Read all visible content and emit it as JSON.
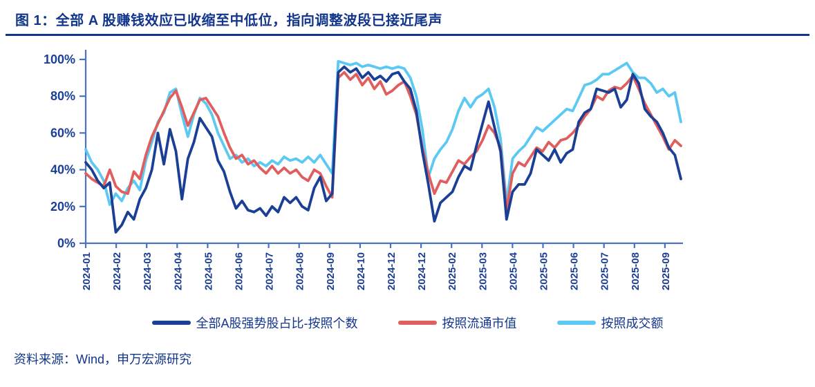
{
  "page": {
    "figure_title": "图 1：全部 A 股赚钱效应已收缩至中低位，指向调整波段已接近尾声",
    "source": "资料来源：Wind，申万宏源研究"
  },
  "colors": {
    "title_text": "#12368c",
    "tick_label_text": "#1b3f94",
    "axis_line": "#4a72c4",
    "series_navy": "#1b3f94",
    "series_red": "#e05e5e",
    "series_sky": "#5cc9f2"
  },
  "chart_data": {
    "type": "line",
    "title": "图 1：全部 A 股赚钱效应已收缩至中低位，指向调整波段已接近尾声",
    "xlabel": "",
    "ylabel": "",
    "ylim": [
      0,
      100
    ],
    "grid": false,
    "legend_position": "bottom",
    "y_tick_labels": [
      "0%",
      "20%",
      "40%",
      "60%",
      "80%",
      "100%"
    ],
    "y_tick_values": [
      0,
      20,
      40,
      60,
      80,
      100
    ],
    "x_tick_labels": [
      "2024-01",
      "2024-02",
      "2024-03",
      "2024-04",
      "2024-05",
      "2024-06",
      "2024-07",
      "2024-08",
      "2024-09",
      "2024-10",
      "2024-12",
      "2024-12",
      "2025-02",
      "2025-03",
      "2025-04",
      "2025-05",
      "2025-06",
      "2025-07",
      "2025-08",
      "2025-09"
    ],
    "x_unit": "month-tick-index",
    "x_step": 0.2,
    "series": [
      {
        "name": "全部A股强势股占比-按照个数",
        "color": "#1b3f94",
        "values": [
          44,
          40,
          34,
          30,
          33,
          6,
          10,
          17,
          13,
          24,
          30,
          40,
          60,
          43,
          62,
          50,
          24,
          46,
          55,
          68,
          63,
          58,
          45,
          39,
          28,
          19,
          23,
          18,
          17,
          19,
          15,
          20,
          17,
          25,
          22,
          25,
          20,
          18,
          30,
          36,
          23,
          27,
          93,
          96,
          93,
          95,
          90,
          93,
          89,
          91,
          88,
          92,
          93,
          88,
          84,
          72,
          50,
          32,
          12,
          22,
          25,
          28,
          36,
          42,
          40,
          53,
          65,
          77,
          63,
          50,
          13,
          28,
          32,
          32,
          38,
          51,
          48,
          45,
          51,
          44,
          49,
          51,
          66,
          71,
          73,
          84,
          83,
          82,
          84,
          74,
          78,
          92,
          87,
          73,
          69,
          66,
          60,
          52,
          48,
          35
        ]
      },
      {
        "name": "按照流通市值",
        "color": "#e05e5e",
        "values": [
          38,
          35,
          33,
          31,
          40,
          31,
          28,
          27,
          39,
          35,
          48,
          58,
          65,
          72,
          79,
          83,
          74,
          64,
          71,
          78,
          79,
          74,
          69,
          60,
          52,
          46,
          48,
          43,
          45,
          41,
          38,
          42,
          38,
          41,
          38,
          40,
          36,
          34,
          40,
          38,
          31,
          25,
          90,
          93,
          89,
          92,
          86,
          90,
          84,
          88,
          81,
          83,
          86,
          88,
          80,
          70,
          52,
          38,
          27,
          34,
          33,
          39,
          45,
          43,
          47,
          50,
          56,
          64,
          60,
          52,
          18,
          38,
          44,
          42,
          47,
          52,
          50,
          55,
          52,
          56,
          57,
          60,
          64,
          69,
          73,
          80,
          78,
          83,
          85,
          84,
          87,
          91,
          84,
          76,
          70,
          64,
          58,
          51,
          56,
          53
        ]
      },
      {
        "name": "按照成交额",
        "color": "#5cc9f2",
        "values": [
          51,
          44,
          40,
          34,
          21,
          27,
          23,
          30,
          34,
          29,
          45,
          55,
          66,
          71,
          82,
          84,
          70,
          58,
          70,
          79,
          76,
          70,
          60,
          53,
          46,
          48,
          44,
          46,
          42,
          44,
          42,
          45,
          43,
          47,
          45,
          46,
          44,
          47,
          44,
          48,
          43,
          38,
          99,
          98,
          97,
          98,
          96,
          97,
          96,
          95,
          96,
          95,
          96,
          95,
          90,
          80,
          62,
          36,
          46,
          51,
          55,
          62,
          72,
          79,
          74,
          79,
          81,
          84,
          74,
          57,
          22,
          46,
          50,
          53,
          58,
          63,
          61,
          64,
          67,
          70,
          73,
          72,
          79,
          86,
          87,
          89,
          92,
          92,
          94,
          96,
          98,
          93,
          90,
          90,
          87,
          82,
          84,
          80,
          82,
          66
        ]
      }
    ]
  }
}
